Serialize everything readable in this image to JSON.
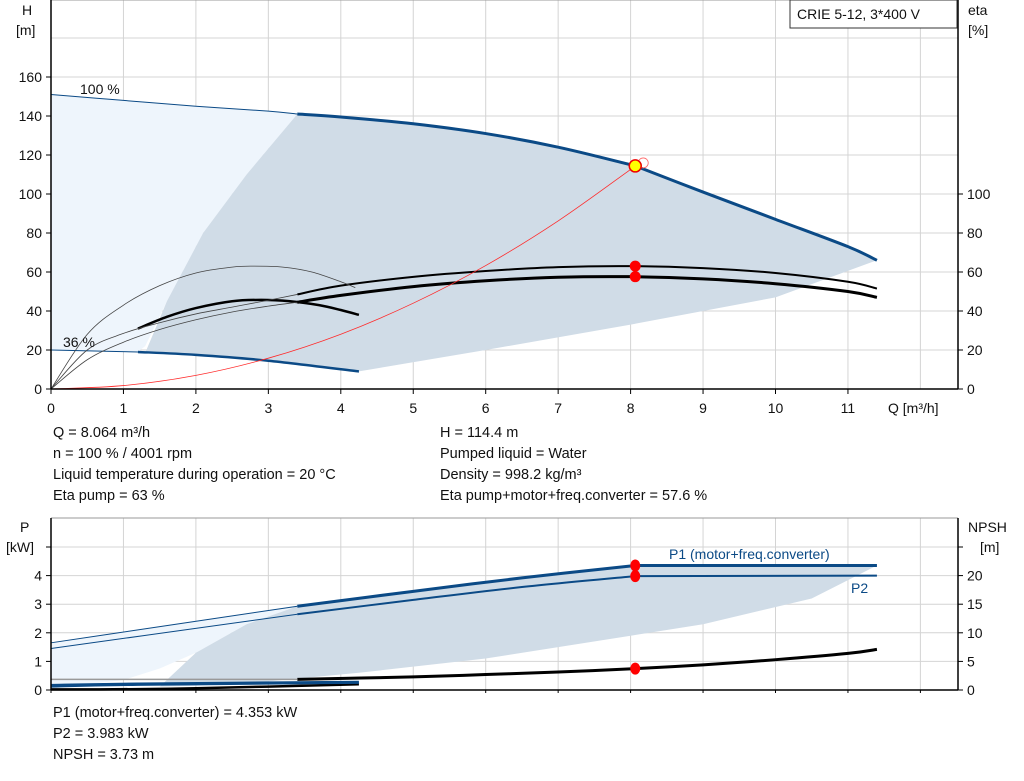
{
  "legend_box": "CRIE 5-12, 3*400 V",
  "colors": {
    "curve_blue": "#0b4a86",
    "area_light": "#eef5fc",
    "area_dark": "#d0dce7",
    "system_curve": "#ff2a2a",
    "duty_point": "#ffff00",
    "grid": "#d4d4d4"
  },
  "info_top": {
    "left": [
      "Q = 8.064 m³/h",
      "n = 100 % / 4001 rpm",
      "Liquid temperature during operation = 20 °C",
      "Eta pump = 63 %"
    ],
    "right": [
      "H = 114.4 m",
      "Pumped liquid = Water",
      "Density = 998.2 kg/m³",
      "Eta pump+motor+freq.converter = 57.6 %"
    ]
  },
  "info_bottom": [
    "P1 (motor+freq.converter) = 4.353 kW",
    "P2 = 3.983 kW",
    "NPSH = 3.73 m"
  ],
  "chart_data": [
    {
      "type": "line",
      "xlabel": "Q [m³/h]",
      "ylabel": [
        "H",
        "[m]"
      ],
      "y2label": [
        "eta",
        "[%]"
      ],
      "xlim": [
        0,
        12.5
      ],
      "ylim": [
        0,
        180
      ],
      "y2lim": [
        0,
        180
      ],
      "xticks": [
        "0",
        "1",
        "2",
        "3",
        "4",
        "5",
        "6",
        "7",
        "8",
        "9",
        "10",
        "11"
      ],
      "yticks": [
        "0",
        "20",
        "40",
        "60",
        "80",
        "100",
        "120",
        "140",
        "160"
      ],
      "y2ticks": [
        "0",
        "20",
        "40",
        "60",
        "80",
        "100"
      ],
      "grid": true,
      "annotations": [
        "100 %",
        "36 %"
      ],
      "series": [
        {
          "key": "h100_thin",
          "x": [
            0,
            1,
            2,
            3,
            3.4
          ],
          "y": [
            151,
            148,
            145,
            142.5,
            141
          ]
        },
        {
          "key": "h100",
          "x": [
            3.4,
            4,
            5,
            6,
            7,
            8,
            8.064,
            9,
            10,
            11,
            11.4
          ],
          "y": [
            141,
            139.5,
            136,
            131,
            124,
            115,
            114.4,
            101,
            87,
            73,
            66
          ]
        },
        {
          "key": "h36_thin",
          "x": [
            0,
            0.6,
            1.2
          ],
          "y": [
            20,
            19.5,
            19
          ]
        },
        {
          "key": "h36",
          "x": [
            1.2,
            2,
            3,
            4.25
          ],
          "y": [
            19,
            17.5,
            14.5,
            9
          ]
        },
        {
          "key": "eta_pump",
          "x": [
            3.4,
            4,
            5,
            6,
            7,
            8,
            9,
            10,
            11,
            11.4
          ],
          "y": [
            48.5,
            53,
            57.5,
            60.5,
            62.5,
            63,
            62,
            59.5,
            55,
            51.5
          ]
        },
        {
          "key": "eta_total",
          "x": [
            3.4,
            4,
            5,
            6,
            7,
            8,
            9,
            10,
            11,
            11.4
          ],
          "y": [
            44.5,
            48,
            52.5,
            55.5,
            57.3,
            57.6,
            56.5,
            54,
            50,
            47
          ]
        },
        {
          "key": "eta_pump_36",
          "x": [
            0,
            0.5,
            1,
            1.5,
            2,
            2.5,
            2.8,
            3.2,
            3.6,
            4,
            4.2
          ],
          "y": [
            0,
            28,
            43,
            53,
            59.5,
            62.5,
            63,
            62.5,
            60,
            55,
            52
          ]
        },
        {
          "key": "eta_total_36",
          "x": [
            1.2,
            1.6,
            2,
            2.5,
            2.9,
            3.3,
            3.7,
            4,
            4.25
          ],
          "y": [
            31,
            37,
            41.5,
            45,
            45.7,
            45,
            43,
            40.5,
            38
          ]
        },
        {
          "key": "eta_speed_a",
          "x": [
            0,
            0.5,
            1,
            1.5,
            2,
            2.5,
            3,
            3.4
          ],
          "y": [
            0,
            20,
            28.5,
            34,
            38.5,
            42,
            45.5,
            48.5
          ]
        },
        {
          "key": "eta_speed_b",
          "x": [
            0,
            0.5,
            1,
            1.5,
            2,
            2.5,
            3,
            3.4
          ],
          "y": [
            0,
            15,
            24,
            30.5,
            35.5,
            39.5,
            42.5,
            44.5
          ]
        },
        {
          "key": "eta_speed_c",
          "x": [
            0,
            0.5,
            1,
            2,
            3,
            3.4
          ],
          "y": [
            0,
            27,
            19,
            31,
            40,
            44.5
          ]
        },
        {
          "key": "system_curve",
          "x": [
            0,
            1,
            2,
            3,
            4,
            5,
            6,
            7,
            8,
            8.064
          ],
          "y": [
            0,
            1.76,
            7,
            15.8,
            28.1,
            44,
            63.3,
            86.2,
            112.6,
            114.4
          ]
        }
      ],
      "areas": {
        "light": {
          "x": [
            0,
            1,
            2,
            3,
            3.4,
            2.7,
            2.1,
            1.6,
            1.3,
            1.2,
            0.6,
            0
          ],
          "y": [
            151,
            148,
            145,
            142.5,
            141,
            110,
            80,
            45,
            22,
            19,
            19.5,
            20
          ]
        },
        "dark": {
          "x": [
            3.4,
            4,
            5,
            6,
            7,
            8,
            9,
            10,
            11,
            11.4,
            10,
            8,
            6,
            4.25,
            3,
            2,
            1.3,
            1.6,
            2.1,
            2.7
          ],
          "y": [
            141,
            139.5,
            136,
            131,
            124,
            115,
            101,
            87,
            73,
            66,
            47,
            33,
            20,
            9,
            14.5,
            17.5,
            18.5,
            45,
            80,
            110
          ]
        }
      },
      "points": [
        {
          "name": "duty-point",
          "x": 8.064,
          "y": 114.4
        },
        {
          "name": "eta-pump-point",
          "x": 8.064,
          "y": 63
        },
        {
          "name": "eta-total-point",
          "x": 8.064,
          "y": 57.6
        }
      ]
    },
    {
      "type": "line",
      "ylabel": [
        "P",
        "[kW]"
      ],
      "y2label": [
        "NPSH",
        "[m]"
      ],
      "xlim": [
        0,
        12.5
      ],
      "ylim": [
        0,
        5.8
      ],
      "y2lim": [
        0,
        29
      ],
      "yticks": [
        "0",
        "1",
        "2",
        "3",
        "4"
      ],
      "y2ticks": [
        "0",
        "5",
        "10",
        "15",
        "20"
      ],
      "grid": true,
      "series": [
        {
          "key": "p1_thin",
          "name": "P1 (motor+freq.converter)",
          "x": [
            0,
            3.4
          ],
          "y": [
            1.65,
            2.93
          ]
        },
        {
          "key": "p1",
          "name": "P1 (motor+freq.converter)",
          "x": [
            3.4,
            5,
            6.5,
            8.064,
            11.4
          ],
          "y": [
            2.93,
            3.45,
            3.92,
            4.353,
            4.353
          ]
        },
        {
          "key": "p2_thin",
          "name": "P2",
          "x": [
            0,
            3.4
          ],
          "y": [
            1.45,
            2.65
          ]
        },
        {
          "key": "p2",
          "name": "P2",
          "x": [
            3.4,
            5,
            6.5,
            8.064,
            11.4
          ],
          "y": [
            2.65,
            3.15,
            3.6,
            3.983,
            4.0
          ]
        },
        {
          "key": "npsh",
          "x": [
            3.4,
            5,
            6,
            7,
            8.064,
            9,
            10,
            11,
            11.4
          ],
          "y_m": [
            1.85,
            2.3,
            2.7,
            3.15,
            3.73,
            4.4,
            5.3,
            6.4,
            7.1
          ]
        },
        {
          "key": "npsh_36",
          "x": [
            0,
            1.2,
            2,
            3,
            4.25
          ],
          "y_m": [
            0.1,
            0.15,
            0.3,
            0.6,
            1.0
          ]
        },
        {
          "key": "p1_36",
          "x": [
            0,
            1.2,
            4.25
          ],
          "y": [
            0.17,
            0.22,
            0.28
          ]
        },
        {
          "key": "p2_36",
          "x": [
            0,
            1.2,
            4.25
          ],
          "y": [
            0.11,
            0.17,
            0.24
          ]
        },
        {
          "key": "p_low_line",
          "x": [
            0,
            3.4
          ],
          "y": [
            0.37,
            0.37
          ]
        }
      ],
      "areas": {
        "light": {
          "x": [
            0,
            3.4,
            2.7,
            2,
            1.5,
            1,
            0
          ],
          "y": [
            1.65,
            2.93,
            2.3,
            1.3,
            0.75,
            0.35,
            0.05
          ]
        },
        "dark": {
          "x": [
            3.4,
            5,
            6.5,
            8.064,
            11.4,
            10.5,
            9,
            8,
            6,
            4.25,
            3,
            2,
            1.5,
            2,
            2.7
          ],
          "y": [
            2.93,
            3.45,
            3.92,
            4.353,
            4.353,
            3.2,
            2.3,
            1.9,
            1.1,
            0.6,
            0.3,
            0.15,
            0.12,
            1.3,
            2.3
          ]
        }
      },
      "labels": [
        "P1 (motor+freq.converter)",
        "P2"
      ],
      "points": [
        {
          "name": "p1-point",
          "x": 8.064,
          "y": 4.353
        },
        {
          "name": "p2-point",
          "x": 8.064,
          "y": 3.983
        },
        {
          "name": "npsh-point",
          "x": 8.064,
          "y_m": 3.73
        }
      ]
    }
  ]
}
